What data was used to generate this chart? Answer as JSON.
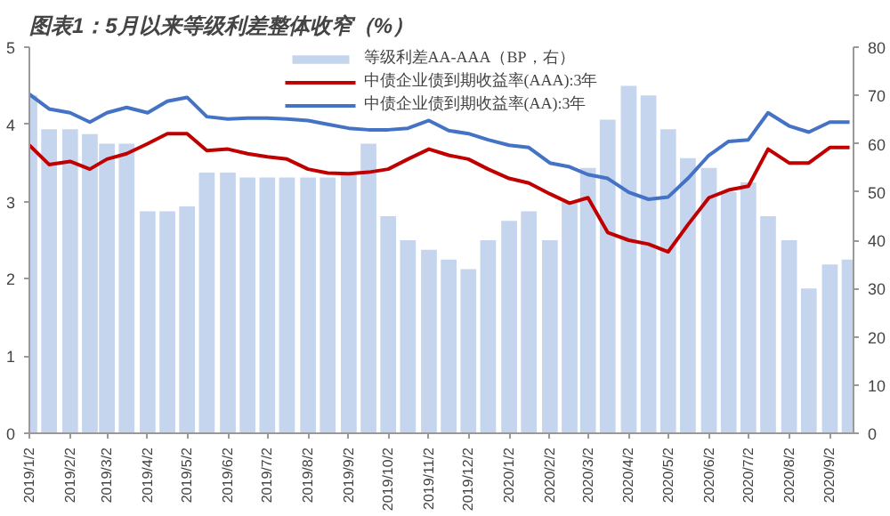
{
  "chart_data": {
    "type": "line",
    "title": "图表1：5月以来等级利差整体收窄（%）",
    "x": [
      "2019-01-02",
      "2019-01-17",
      "2019-02-02",
      "2019-02-17",
      "2019-03-02",
      "2019-03-17",
      "2019-04-02",
      "2019-04-17",
      "2019-05-02",
      "2019-05-17",
      "2019-06-02",
      "2019-06-17",
      "2019-07-02",
      "2019-07-17",
      "2019-08-02",
      "2019-08-17",
      "2019-09-02",
      "2019-09-17",
      "2019-10-02",
      "2019-10-17",
      "2019-11-02",
      "2019-11-17",
      "2019-12-02",
      "2019-12-17",
      "2020-01-02",
      "2020-01-17",
      "2020-02-02",
      "2020-02-17",
      "2020-03-02",
      "2020-03-17",
      "2020-04-02",
      "2020-04-17",
      "2020-05-02",
      "2020-05-17",
      "2020-06-02",
      "2020-06-17",
      "2020-07-02",
      "2020-07-17",
      "2020-08-02",
      "2020-08-17",
      "2020-09-02",
      "2020-09-17"
    ],
    "series": [
      {
        "name": "等级利差AA-AAA（BP，右）",
        "type": "bar",
        "axis": "y2",
        "color": "#c5d5ee",
        "values": [
          70,
          63,
          63,
          62,
          60,
          60,
          46,
          46,
          47,
          54,
          54,
          53,
          53,
          53,
          53,
          53,
          54,
          60,
          45,
          40,
          38,
          36,
          34,
          40,
          44,
          46,
          40,
          48,
          55,
          65,
          72,
          70,
          63,
          57,
          55,
          50,
          52,
          45,
          40,
          30,
          35,
          36
        ]
      },
      {
        "name": "中债企业债到期收益率(AAA):3年",
        "color": "#c00000",
        "values": [
          3.73,
          3.48,
          3.52,
          3.42,
          3.55,
          3.62,
          3.75,
          3.88,
          3.88,
          3.66,
          3.68,
          3.62,
          3.58,
          3.55,
          3.42,
          3.37,
          3.36,
          3.38,
          3.42,
          3.55,
          3.68,
          3.6,
          3.55,
          3.42,
          3.3,
          3.24,
          3.1,
          2.98,
          3.05,
          2.6,
          2.5,
          2.45,
          2.35,
          2.7,
          3.05,
          3.15,
          3.2,
          3.68,
          3.5,
          3.5,
          3.7,
          3.7
        ]
      },
      {
        "name": "中债企业债到期收益率(AA):3年",
        "color": "#4472c4",
        "values": [
          4.39,
          4.2,
          4.15,
          4.03,
          4.15,
          4.22,
          4.15,
          4.3,
          4.35,
          4.1,
          4.07,
          4.08,
          4.08,
          4.07,
          4.05,
          4.0,
          3.95,
          3.93,
          3.93,
          3.95,
          4.05,
          3.92,
          3.88,
          3.8,
          3.73,
          3.7,
          3.5,
          3.45,
          3.35,
          3.3,
          3.12,
          3.03,
          3.06,
          3.3,
          3.6,
          3.78,
          3.8,
          4.15,
          3.98,
          3.9,
          4.03,
          4.03
        ]
      }
    ],
    "xlim": [
      "2019-01-02",
      "2020-09-20"
    ],
    "xticks": [
      {
        "value": "2019-01-02",
        "label": "2019/1/2"
      },
      {
        "value": "2019-02-02",
        "label": "2019/2/2"
      },
      {
        "value": "2019-03-02",
        "label": "2019/3/2"
      },
      {
        "value": "2019-04-02",
        "label": "2019/4/2"
      },
      {
        "value": "2019-05-02",
        "label": "2019/5/2"
      },
      {
        "value": "2019-06-02",
        "label": "2019/6/2"
      },
      {
        "value": "2019-07-02",
        "label": "2019/7/2"
      },
      {
        "value": "2019-08-02",
        "label": "2019/8/2"
      },
      {
        "value": "2019-09-02",
        "label": "2019/9/2"
      },
      {
        "value": "2019-10-02",
        "label": "2019/10/2"
      },
      {
        "value": "2019-11-02",
        "label": "2019/11/2"
      },
      {
        "value": "2019-12-02",
        "label": "2019/12/2"
      },
      {
        "value": "2020-01-02",
        "label": "2020/1/2"
      },
      {
        "value": "2020-02-02",
        "label": "2020/2/2"
      },
      {
        "value": "2020-03-02",
        "label": "2020/3/2"
      },
      {
        "value": "2020-04-02",
        "label": "2020/4/2"
      },
      {
        "value": "2020-05-02",
        "label": "2020/5/2"
      },
      {
        "value": "2020-06-02",
        "label": "2020/6/2"
      },
      {
        "value": "2020-07-02",
        "label": "2020/7/2"
      },
      {
        "value": "2020-08-02",
        "label": "2020/8/2"
      },
      {
        "value": "2020-09-02",
        "label": "2020/9/2"
      }
    ],
    "ylim": [
      0,
      5
    ],
    "yticks": [
      0,
      1,
      2,
      3,
      4,
      5
    ],
    "y2lim": [
      0,
      80
    ],
    "y2ticks": [
      0,
      10,
      20,
      30,
      40,
      50,
      60,
      70,
      80
    ],
    "legend": "top",
    "grid": false
  }
}
